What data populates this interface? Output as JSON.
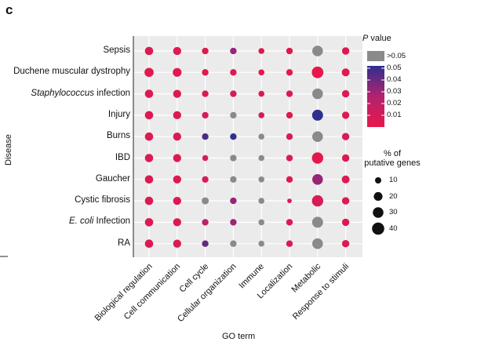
{
  "panel_label": "c",
  "chart_data": {
    "type": "scatter",
    "subtype": "dot-matrix",
    "xlabel": "GO term",
    "ylabel": "Disease",
    "categories_x": [
      "Biological regulation",
      "Cell communication",
      "Cell cycle",
      "Cellular organization",
      "Immune",
      "Localization",
      "Metabolic",
      "Response to stimuli"
    ],
    "categories_y": [
      "Sepsis",
      "Duchene muscular dystrophy",
      "Staphylococcus infection",
      "Injury",
      "Burns",
      "IBD",
      "Gaucher",
      "Cystic fibrosis",
      "E. coli Infection",
      "RA"
    ],
    "y_label_parts": [
      {
        "pre": "",
        "em": "",
        "post": "Sepsis"
      },
      {
        "pre": "",
        "em": "",
        "post": "Duchene muscular dystrophy"
      },
      {
        "pre": "",
        "em": "Staphylococcus",
        "post": " infection"
      },
      {
        "pre": "",
        "em": "",
        "post": "Injury"
      },
      {
        "pre": "",
        "em": "",
        "post": "Burns"
      },
      {
        "pre": "",
        "em": "",
        "post": "IBD"
      },
      {
        "pre": "",
        "em": "",
        "post": "Gaucher"
      },
      {
        "pre": "",
        "em": "",
        "post": "Cystic fibrosis"
      },
      {
        "pre": "",
        "em": "E. coli",
        "post": " Infection"
      },
      {
        "pre": "",
        "em": "",
        "post": "RA"
      }
    ],
    "size_metric": "% of putative genes",
    "color_metric": "P value",
    "points": [
      {
        "disease": "Sepsis",
        "pct": [
          18,
          17,
          11,
          11,
          9,
          11,
          30,
          14
        ],
        "p": [
          0.005,
          0.003,
          0.005,
          0.03,
          0.005,
          0.005,
          null,
          0.005
        ]
      },
      {
        "disease": "Duchene muscular dystrophy",
        "pct": [
          22,
          20,
          11,
          11,
          9,
          11,
          36,
          16
        ],
        "p": [
          0.003,
          0.003,
          0.003,
          0.005,
          0.003,
          0.003,
          0.001,
          0.003
        ]
      },
      {
        "disease": "Staphylococcus infection",
        "pct": [
          18,
          17,
          11,
          11,
          9,
          11,
          30,
          14
        ],
        "p": [
          0.005,
          0.005,
          0.005,
          0.008,
          0.005,
          0.005,
          null,
          0.005
        ]
      },
      {
        "disease": "Injury",
        "pct": [
          18,
          17,
          11,
          11,
          9,
          11,
          32,
          14
        ],
        "p": [
          0.005,
          0.005,
          0.008,
          null,
          0.008,
          0.005,
          0.05,
          0.005
        ]
      },
      {
        "disease": "Burns",
        "pct": [
          18,
          17,
          11,
          11,
          9,
          11,
          30,
          14
        ],
        "p": [
          0.005,
          0.005,
          0.045,
          0.05,
          null,
          0.008,
          null,
          0.008
        ]
      },
      {
        "disease": "IBD",
        "pct": [
          18,
          17,
          9,
          11,
          9,
          11,
          34,
          14
        ],
        "p": [
          0.005,
          0.005,
          0.008,
          null,
          null,
          0.005,
          0.001,
          0.005
        ]
      },
      {
        "disease": "Gaucher",
        "pct": [
          18,
          17,
          11,
          11,
          9,
          11,
          30,
          16
        ],
        "p": [
          0.005,
          0.005,
          0.008,
          null,
          null,
          0.005,
          0.03,
          0.005
        ]
      },
      {
        "disease": "Cystic fibrosis",
        "pct": [
          18,
          17,
          13,
          11,
          9,
          5,
          34,
          14
        ],
        "p": [
          0.005,
          0.005,
          null,
          0.03,
          null,
          0.005,
          0.008,
          0.005
        ]
      },
      {
        "disease": "E. coli Infection",
        "pct": [
          18,
          17,
          11,
          11,
          9,
          11,
          32,
          14
        ],
        "p": [
          0.005,
          0.005,
          0.02,
          0.03,
          null,
          0.005,
          null,
          0.005
        ]
      },
      {
        "disease": "RA",
        "pct": [
          18,
          17,
          11,
          11,
          9,
          11,
          30,
          14
        ],
        "p": [
          0.005,
          0.005,
          0.04,
          null,
          null,
          0.008,
          null,
          0.005
        ]
      }
    ],
    "legend": {
      "color_title_italic": "P",
      "color_title_rest": " value",
      "color_ticks": [
        0.05,
        0.04,
        0.03,
        0.02,
        0.01
      ],
      "color_tick_labels": [
        "0.05",
        "0.04",
        "0.03",
        "0.02",
        "0.01"
      ],
      "gray_label": ">0.05",
      "size_title_line1": "% of",
      "size_title_line2": "putative genes",
      "size_values": [
        10,
        20,
        30,
        40
      ],
      "size_labels": [
        "10",
        "20",
        "30",
        "40"
      ]
    }
  },
  "colors": {
    "low_p": "#e8174a",
    "mid_p": "#b2236e",
    "high_p": "#2e2f8f",
    "not_significant": "#8a8a8a",
    "panel_bg": "#ebebeb"
  }
}
